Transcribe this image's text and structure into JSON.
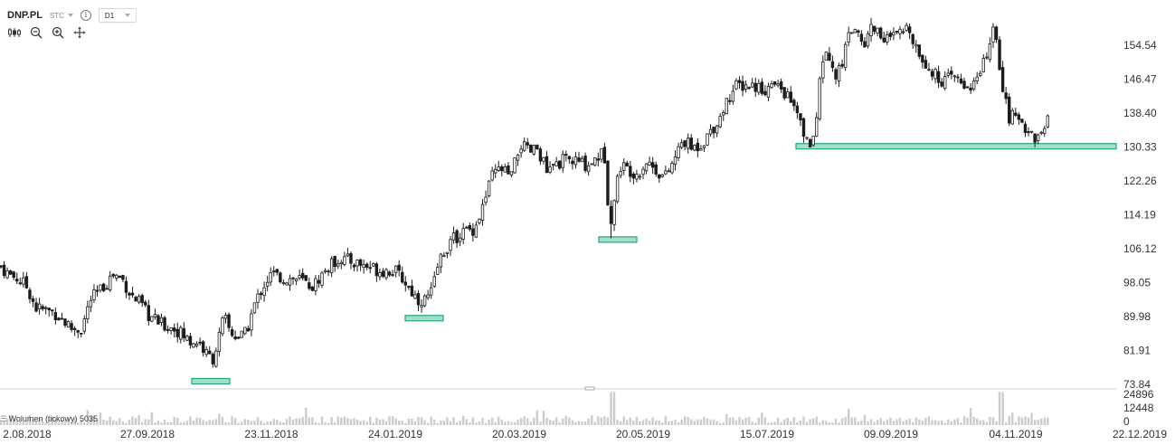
{
  "header": {
    "symbol": "DNP.PL",
    "market": "STC",
    "info_icon": "info-icon",
    "interval": "D1"
  },
  "toolbar": {
    "icons": [
      "candles-icon",
      "zoom-out-icon",
      "zoom-in-icon",
      "move-icon"
    ]
  },
  "volume": {
    "label": "Wolumen (tickowy)",
    "value": "5035",
    "ticks": [
      "24896",
      "12448",
      "0"
    ],
    "max": 24896
  },
  "colors": {
    "candle": "#1c1c1c",
    "zone_fill": "#9fe0c7",
    "zone_stroke": "#27a578",
    "volume_bar": "#cccccc",
    "grid": "#e3e3e3"
  },
  "chart_data": {
    "type": "candlestick",
    "ylim": [
      73.84,
      162.61
    ],
    "y_ticks": [
      "154.54",
      "146.47",
      "138.40",
      "130.33",
      "122.26",
      "114.19",
      "106.12",
      "98.05",
      "89.98",
      "81.91",
      "73.84"
    ],
    "x_ticks": [
      "2.08.2018",
      "27.09.2018",
      "23.11.2018",
      "24.01.2019",
      "20.03.2019",
      "20.05.2019",
      "15.07.2019",
      "09.09.2019",
      "04.11.2019",
      "22.12.2019"
    ],
    "price_path": [
      [
        0,
        102
      ],
      [
        10,
        100
      ],
      [
        20,
        99
      ],
      [
        30,
        97
      ],
      [
        40,
        92
      ],
      [
        60,
        91
      ],
      [
        80,
        87
      ],
      [
        90,
        87
      ],
      [
        100,
        94
      ],
      [
        110,
        96
      ],
      [
        125,
        100
      ],
      [
        135,
        99
      ],
      [
        145,
        95
      ],
      [
        155,
        93
      ],
      [
        165,
        90
      ],
      [
        180,
        88
      ],
      [
        195,
        87
      ],
      [
        210,
        84
      ],
      [
        220,
        84
      ],
      [
        228,
        81
      ],
      [
        236,
        80
      ],
      [
        242,
        85
      ],
      [
        248,
        90
      ],
      [
        255,
        86
      ],
      [
        265,
        85
      ],
      [
        272,
        86
      ],
      [
        280,
        92
      ],
      [
        290,
        97
      ],
      [
        300,
        100
      ],
      [
        315,
        99
      ],
      [
        330,
        99
      ],
      [
        345,
        97
      ],
      [
        360,
        101
      ],
      [
        375,
        104
      ],
      [
        390,
        103
      ],
      [
        405,
        102
      ],
      [
        420,
        101
      ],
      [
        435,
        101
      ],
      [
        445,
        99
      ],
      [
        455,
        96
      ],
      [
        462,
        94
      ],
      [
        470,
        94
      ],
      [
        478,
        96
      ],
      [
        485,
        103
      ],
      [
        495,
        107
      ],
      [
        510,
        110
      ],
      [
        525,
        111
      ],
      [
        535,
        117
      ],
      [
        545,
        124
      ],
      [
        555,
        125
      ],
      [
        565,
        123
      ],
      [
        575,
        131
      ],
      [
        585,
        129
      ],
      [
        595,
        130
      ],
      [
        605,
        124
      ],
      [
        620,
        127
      ],
      [
        635,
        127
      ],
      [
        650,
        126
      ],
      [
        660,
        128
      ],
      [
        668,
        129
      ],
      [
        672,
        118
      ],
      [
        676,
        113
      ],
      [
        680,
        119
      ],
      [
        685,
        126
      ],
      [
        695,
        125
      ],
      [
        705,
        124
      ],
      [
        715,
        127
      ],
      [
        725,
        125
      ],
      [
        735,
        123
      ],
      [
        745,
        127
      ],
      [
        755,
        132
      ],
      [
        765,
        130
      ],
      [
        775,
        131
      ],
      [
        785,
        134
      ],
      [
        795,
        137
      ],
      [
        805,
        142
      ],
      [
        815,
        145
      ],
      [
        825,
        145
      ],
      [
        835,
        145
      ],
      [
        845,
        144
      ],
      [
        855,
        145
      ],
      [
        865,
        144
      ],
      [
        875,
        141
      ],
      [
        883,
        137
      ],
      [
        890,
        132
      ],
      [
        897,
        131
      ],
      [
        903,
        136
      ],
      [
        908,
        151
      ],
      [
        915,
        153
      ],
      [
        922,
        147
      ],
      [
        930,
        149
      ],
      [
        938,
        158
      ],
      [
        945,
        159
      ],
      [
        955,
        154
      ],
      [
        962,
        159
      ],
      [
        970,
        158
      ],
      [
        980,
        156
      ],
      [
        995,
        157
      ],
      [
        1005,
        159
      ],
      [
        1015,
        153
      ],
      [
        1025,
        150
      ],
      [
        1035,
        147
      ],
      [
        1045,
        146
      ],
      [
        1055,
        147
      ],
      [
        1065,
        145
      ],
      [
        1075,
        145
      ],
      [
        1085,
        148
      ],
      [
        1092,
        154
      ],
      [
        1099,
        158
      ],
      [
        1105,
        150
      ],
      [
        1110,
        143
      ],
      [
        1115,
        137
      ],
      [
        1122,
        138
      ],
      [
        1130,
        136
      ],
      [
        1138,
        134
      ],
      [
        1146,
        132
      ],
      [
        1153,
        134
      ],
      [
        1160,
        137
      ]
    ],
    "support_zones": [
      {
        "from": "27.09.2018",
        "to": "23.11.2018",
        "price": 74.6
      },
      {
        "from": "24.01.2019",
        "to": "24.01.2019",
        "price": 89.6
      },
      {
        "from": "20.05.2019",
        "to": "20.05.2019",
        "price": 108.3
      },
      {
        "from": "15.07.2019",
        "to": "22.12.2019",
        "price": 130.5
      }
    ]
  }
}
